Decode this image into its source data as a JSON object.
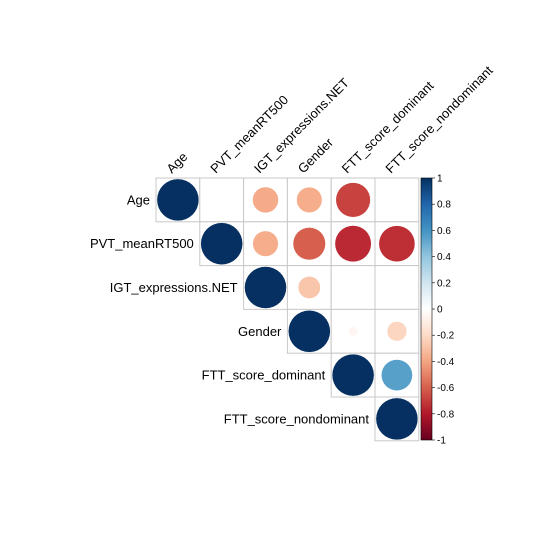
{
  "chart_data": {
    "type": "correlation-matrix",
    "variables": [
      "Age",
      "PVT_meanRT500",
      "IGT_expressions.NET",
      "Gender",
      "FTT_score_dominant",
      "FTT_score_nondominant"
    ],
    "display": "upper-triangle circles, significant cells only",
    "correlations": [
      {
        "row": 0,
        "col": 0,
        "value": 1.0
      },
      {
        "row": 0,
        "col": 2,
        "value": -0.38
      },
      {
        "row": 0,
        "col": 3,
        "value": -0.37
      },
      {
        "row": 0,
        "col": 4,
        "value": -0.68
      },
      {
        "row": 1,
        "col": 1,
        "value": 1.0
      },
      {
        "row": 1,
        "col": 2,
        "value": -0.37
      },
      {
        "row": 1,
        "col": 3,
        "value": -0.6
      },
      {
        "row": 1,
        "col": 4,
        "value": -0.75
      },
      {
        "row": 1,
        "col": 5,
        "value": -0.74
      },
      {
        "row": 2,
        "col": 2,
        "value": 1.0
      },
      {
        "row": 2,
        "col": 3,
        "value": -0.28
      },
      {
        "row": 3,
        "col": 3,
        "value": 1.0
      },
      {
        "row": 3,
        "col": 4,
        "value": -0.05
      },
      {
        "row": 3,
        "col": 5,
        "value": -0.22
      },
      {
        "row": 4,
        "col": 4,
        "value": 1.0
      },
      {
        "row": 4,
        "col": 5,
        "value": 0.55
      },
      {
        "row": 5,
        "col": 5,
        "value": 1.0
      }
    ],
    "legend": {
      "range": [
        -1,
        1
      ],
      "ticks": [
        "1",
        "0.8",
        "0.6",
        "0.4",
        "0.2",
        "0",
        "-0.2",
        "-0.4",
        "-0.6",
        "-0.8",
        "-1"
      ],
      "colors": {
        "negative_end": "#67001F",
        "neutral": "#FFFFFF",
        "positive_end": "#053061"
      }
    }
  }
}
